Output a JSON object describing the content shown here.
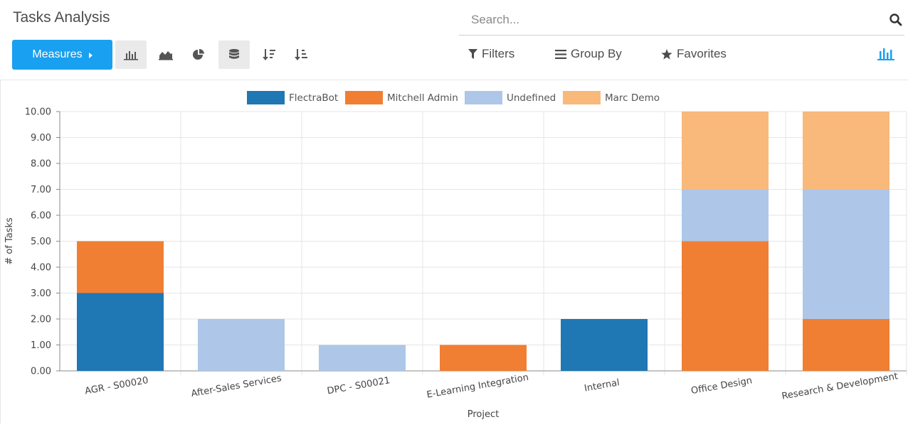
{
  "header": {
    "title": "Tasks Analysis",
    "search_placeholder": "Search...",
    "measures_label": "Measures",
    "filters_label": "Filters",
    "group_by_label": "Group By",
    "favorites_label": "Favorites",
    "toolbar_icons": [
      "bar-chart-icon",
      "line-chart-icon",
      "pie-chart-icon",
      "stacked-icon",
      "sort-descending-icon",
      "sort-ascending-icon"
    ],
    "view_switcher_icon": "graph-view-icon",
    "accent_color": "#1aa0f0"
  },
  "chart_data": {
    "type": "bar",
    "stacked": true,
    "categories": [
      "AGR - S00020",
      "After-Sales Services",
      "DPC - S00021",
      "E-Learning Integration",
      "Internal",
      "Office Design",
      "Research & Development"
    ],
    "series": [
      {
        "name": "FlectraBot",
        "color": "#1f77b4",
        "values": [
          3,
          0,
          0,
          0,
          2,
          0,
          0
        ]
      },
      {
        "name": "Mitchell Admin",
        "color": "#f07f33",
        "values": [
          2,
          0,
          0,
          1,
          0,
          5,
          2
        ]
      },
      {
        "name": "Undefined",
        "color": "#aec7e8",
        "values": [
          0,
          2,
          1,
          0,
          0,
          2,
          5
        ]
      },
      {
        "name": "Marc Demo",
        "color": "#f8b97a",
        "values": [
          0,
          0,
          0,
          0,
          0,
          3,
          3
        ]
      }
    ],
    "xlabel": "Project",
    "ylabel": "# of Tasks",
    "ylim": [
      0,
      10
    ],
    "yticks": [
      "0.00",
      "1.00",
      "2.00",
      "3.00",
      "4.00",
      "5.00",
      "6.00",
      "7.00",
      "8.00",
      "9.00",
      "10.00"
    ],
    "legend_position": "top",
    "grid": true
  }
}
